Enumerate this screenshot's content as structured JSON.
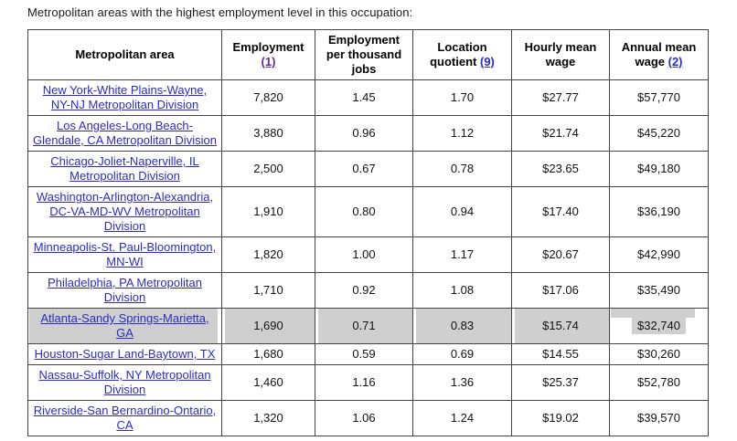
{
  "page": {
    "title": "Metropolitan areas with the highest employment level in this occupation:"
  },
  "table": {
    "columns": [
      {
        "label": "Metropolitan area",
        "footnote": ""
      },
      {
        "label": "Employment",
        "footnote": "(1)"
      },
      {
        "label": "Employment per thousand jobs",
        "footnote": ""
      },
      {
        "label": "Location quotient",
        "footnote": "(9)"
      },
      {
        "label": "Hourly mean wage",
        "footnote": ""
      },
      {
        "label": "Annual mean wage",
        "footnote": "(2)"
      }
    ],
    "rows": [
      {
        "area": "New York-White Plains-Wayne, NY-NJ Metropolitan Division",
        "employment": "7,820",
        "per_thousand": "1.45",
        "location_quotient": "1.70",
        "hourly_mean": "$27.77",
        "annual_mean": "$57,770",
        "highlighted": false
      },
      {
        "area": "Los Angeles-Long Beach-Glendale, CA Metropolitan Division",
        "employment": "3,880",
        "per_thousand": "0.96",
        "location_quotient": "1.12",
        "hourly_mean": "$21.74",
        "annual_mean": "$45,220",
        "highlighted": false
      },
      {
        "area": "Chicago-Joliet-Naperville, IL Metropolitan Division",
        "employment": "2,500",
        "per_thousand": "0.67",
        "location_quotient": "0.78",
        "hourly_mean": "$23.65",
        "annual_mean": "$49,180",
        "highlighted": false
      },
      {
        "area": "Washington-Arlington-Alexandria, DC-VA-MD-WV Metropolitan Division",
        "employment": "1,910",
        "per_thousand": "0.80",
        "location_quotient": "0.94",
        "hourly_mean": "$17.40",
        "annual_mean": "$36,190",
        "highlighted": false
      },
      {
        "area": "Minneapolis-St. Paul-Bloomington, MN-WI",
        "employment": "1,820",
        "per_thousand": "1.00",
        "location_quotient": "1.17",
        "hourly_mean": "$20.67",
        "annual_mean": "$42,990",
        "highlighted": false
      },
      {
        "area": "Philadelphia, PA Metropolitan Division",
        "employment": "1,710",
        "per_thousand": "0.92",
        "location_quotient": "1.08",
        "hourly_mean": "$17.06",
        "annual_mean": "$35,490",
        "highlighted": false
      },
      {
        "area": "Atlanta-Sandy Springs-Marietta, GA",
        "employment": "1,690",
        "per_thousand": "0.71",
        "location_quotient": "0.83",
        "hourly_mean": "$15.74",
        "annual_mean": "$32,740",
        "highlighted": true
      },
      {
        "area": "Houston-Sugar Land-Baytown, TX",
        "employment": "1,680",
        "per_thousand": "0.59",
        "location_quotient": "0.69",
        "hourly_mean": "$14.55",
        "annual_mean": "$30,260",
        "highlighted": false
      },
      {
        "area": "Nassau-Suffolk, NY Metropolitan Division",
        "employment": "1,460",
        "per_thousand": "1.16",
        "location_quotient": "1.36",
        "hourly_mean": "$25.37",
        "annual_mean": "$52,780",
        "highlighted": false
      },
      {
        "area": "Riverside-San Bernardino-Ontario, CA",
        "employment": "1,320",
        "per_thousand": "1.06",
        "location_quotient": "1.24",
        "hourly_mean": "$19.02",
        "annual_mean": "$39,570",
        "highlighted": false
      }
    ]
  },
  "colors": {
    "link_blue": "#2b2bc8",
    "visited_purple": "#5e2b97",
    "selection_gray": "#cfcfcf",
    "border": "#444444",
    "text": "#1a1a1a"
  }
}
